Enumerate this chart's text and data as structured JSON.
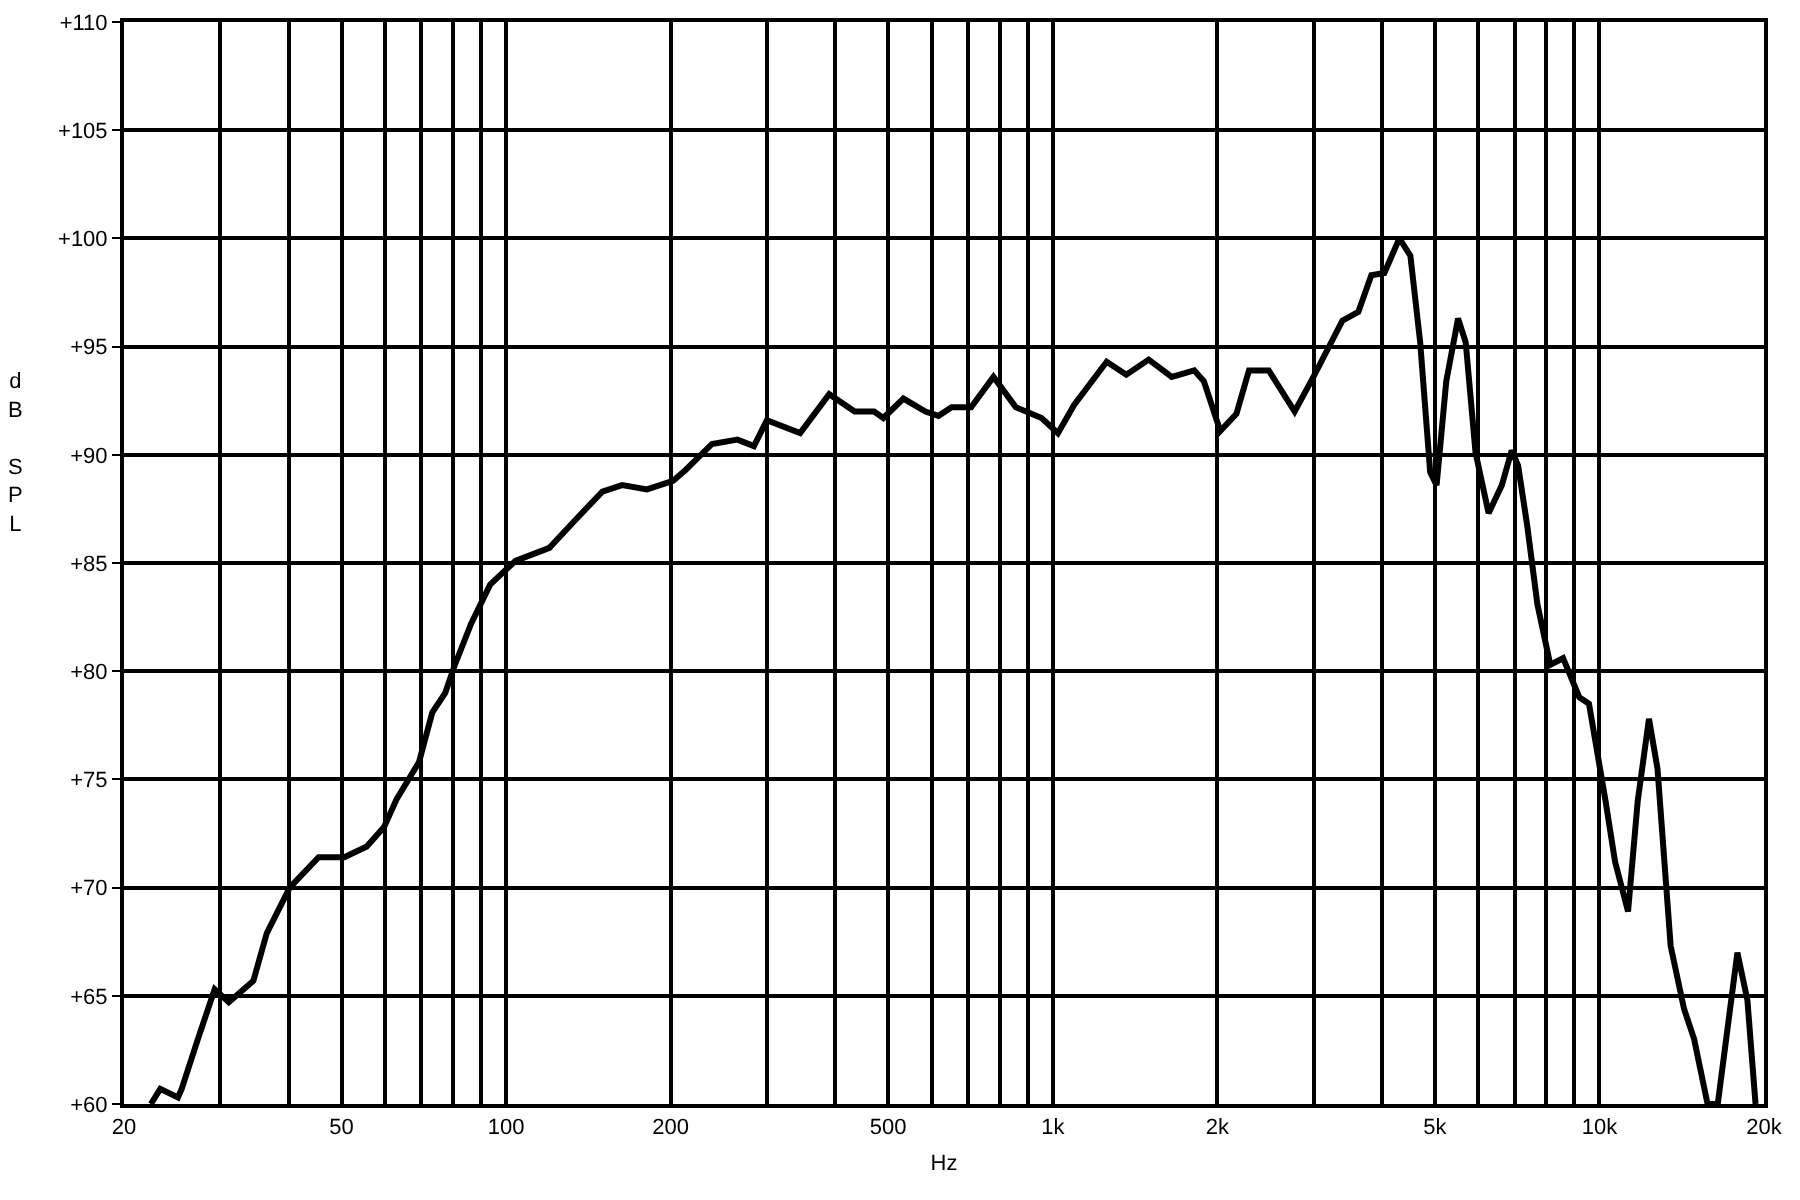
{
  "chart_data": {
    "type": "line",
    "xlabel": "Hz",
    "ylabel": "dB SPL",
    "log": "x",
    "grid": true,
    "marker": "none",
    "line_style": "solid",
    "xlim": [
      20,
      20000
    ],
    "ylim": [
      60,
      110
    ],
    "xticks": [
      20,
      {
        "value": 30,
        "label": null
      },
      {
        "value": 40,
        "label": null
      },
      50,
      {
        "value": 60,
        "label": null
      },
      {
        "value": 70,
        "label": null
      },
      {
        "value": 80,
        "label": null
      },
      {
        "value": 90,
        "label": null
      },
      100,
      200,
      {
        "value": 300,
        "label": null
      },
      {
        "value": 400,
        "label": null
      },
      500,
      {
        "value": 600,
        "label": null
      },
      {
        "value": 700,
        "label": null
      },
      {
        "value": 800,
        "label": null
      },
      {
        "value": 900,
        "label": null
      },
      {
        "value": 1000,
        "label": "1k"
      },
      {
        "value": 2000,
        "label": "2k"
      },
      {
        "value": 3000,
        "label": null
      },
      {
        "value": 4000,
        "label": null
      },
      {
        "value": 5000,
        "label": "5k"
      },
      {
        "value": 6000,
        "label": null
      },
      {
        "value": 7000,
        "label": null
      },
      {
        "value": 8000,
        "label": null
      },
      {
        "value": 9000,
        "label": null
      },
      {
        "value": 10000,
        "label": "10k"
      },
      {
        "value": 20000,
        "label": "20k"
      }
    ],
    "yticks": [
      {
        "value": 60,
        "label": "+60"
      },
      {
        "value": 65,
        "label": "+65"
      },
      {
        "value": 70,
        "label": "+70"
      },
      {
        "value": 75,
        "label": "+75"
      },
      {
        "value": 80,
        "label": "+80"
      },
      {
        "value": 85,
        "label": "+85"
      },
      {
        "value": 90,
        "label": "+90"
      },
      {
        "value": 95,
        "label": "+95"
      },
      {
        "value": 100,
        "label": "+100"
      },
      {
        "value": 105,
        "label": "+105"
      },
      {
        "value": 110,
        "label": "+110"
      }
    ],
    "x": [
      22.4,
      23.3,
      25.1,
      25.5,
      27.3,
      29.3,
      31.1,
      34.5,
      36.5,
      40.2,
      45.4,
      50.6,
      55.6,
      59.8,
      63.1,
      69.3,
      73.3,
      77.4,
      80.6,
      86.3,
      93.5,
      104,
      120,
      134,
      150,
      163,
      181,
      202,
      213,
      238,
      265,
      284,
      300,
      345,
      390,
      434,
      471,
      490,
      533,
      585,
      618,
      653,
      709,
      779,
      856,
      954,
      1022,
      1094,
      1255,
      1363,
      1498,
      1651,
      1815,
      1890,
      2025,
      2168,
      2285,
      2484,
      2770,
      2998,
      3387,
      3622,
      3826,
      4042,
      4305,
      4510,
      4700,
      4902,
      5036,
      5246,
      5513,
      5693,
      5934,
      6270,
      6630,
      6910,
      7100,
      7380,
      7700,
      8130,
      8580,
      9185,
      9570,
      10260,
      10680,
      11280,
      11750,
      12320,
      12770,
      13500,
      14280,
      14900,
      15770,
      16460,
      17880,
      18650,
      19300
    ],
    "series": [
      {
        "color": "#000000",
        "values": [
          60.0,
          60.7,
          60.3,
          60.7,
          63.0,
          65.3,
          64.7,
          65.7,
          67.9,
          70.0,
          71.4,
          71.4,
          71.9,
          72.8,
          74.1,
          75.8,
          78.1,
          79.0,
          80.3,
          82.2,
          84.0,
          85.1,
          85.7,
          87.0,
          88.3,
          88.6,
          88.4,
          88.8,
          89.3,
          90.5,
          90.7,
          90.4,
          91.6,
          91.0,
          92.8,
          92.0,
          92.0,
          91.7,
          92.6,
          92.0,
          91.8,
          92.2,
          92.2,
          93.6,
          92.2,
          91.7,
          91.0,
          92.3,
          94.3,
          93.7,
          94.4,
          93.6,
          93.9,
          93.4,
          91.1,
          91.9,
          93.9,
          93.9,
          92.0,
          93.6,
          96.2,
          96.6,
          98.3,
          98.4,
          100.0,
          99.2,
          95.2,
          89.2,
          88.6,
          93.4,
          96.3,
          95.2,
          90.1,
          87.3,
          88.6,
          90.2,
          89.5,
          86.7,
          83.1,
          80.3,
          80.6,
          78.8,
          78.5,
          74.0,
          71.2,
          68.9,
          74.0,
          77.8,
          75.5,
          67.3,
          64.4,
          63.0,
          60.0,
          60.0,
          67.0,
          64.8,
          60.0
        ]
      }
    ]
  }
}
